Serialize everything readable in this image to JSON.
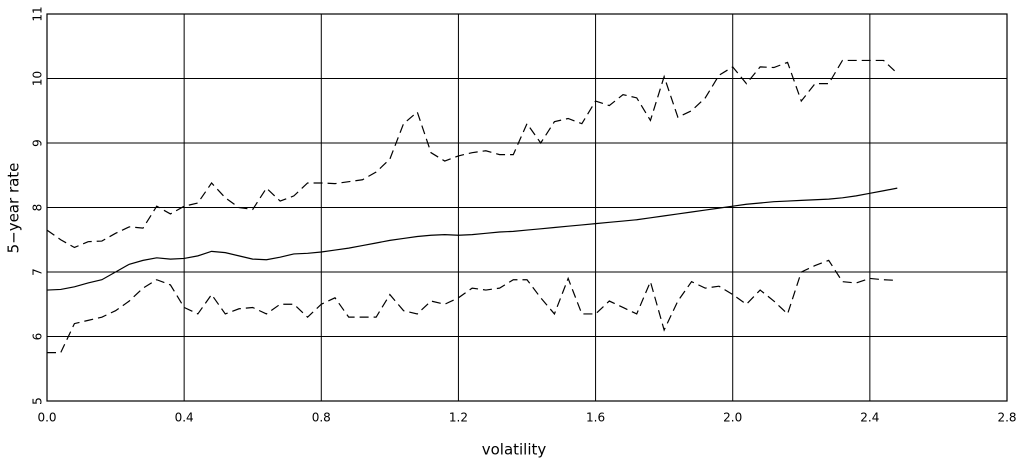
{
  "chart_data": {
    "type": "line",
    "x_label": "volatility",
    "y_label": "5−year rate",
    "x": [
      0,
      0.04,
      0.08,
      0.12,
      0.16,
      0.2,
      0.24,
      0.28,
      0.32,
      0.36,
      0.4,
      0.44,
      0.48,
      0.52,
      0.56,
      0.6,
      0.64,
      0.68,
      0.72,
      0.76,
      0.8,
      0.84,
      0.88,
      0.92,
      0.96,
      1,
      1.04,
      1.08,
      1.12,
      1.16,
      1.2,
      1.24,
      1.28,
      1.32,
      1.36,
      1.4,
      1.44,
      1.48,
      1.52,
      1.56,
      1.6,
      1.64,
      1.68,
      1.72,
      1.76,
      1.8,
      1.84,
      1.88,
      1.92,
      1.96,
      2,
      2.04,
      2.08,
      2.12,
      2.16,
      2.2,
      2.24,
      2.28,
      2.32,
      2.36,
      2.4,
      2.44,
      2.48
    ],
    "series": [
      {
        "color": "#000000",
        "style": "dashed",
        "values": [
          7.65,
          7.5,
          7.38,
          7.47,
          7.48,
          7.6,
          7.7,
          7.68,
          8.02,
          7.9,
          8.02,
          8.07,
          8.38,
          8.15,
          8.0,
          7.97,
          8.3,
          8.1,
          8.18,
          8.38,
          8.38,
          8.37,
          8.4,
          8.43,
          8.55,
          8.75,
          9.3,
          9.48,
          8.85,
          8.72,
          8.8,
          8.85,
          8.88,
          8.82,
          8.82,
          9.3,
          9.0,
          9.33,
          9.38,
          9.3,
          9.65,
          9.58,
          9.75,
          9.7,
          9.35,
          10.03,
          9.4,
          9.5,
          9.7,
          10.05,
          10.18,
          9.92,
          10.18,
          10.17,
          10.25,
          9.65,
          9.92,
          9.92,
          10.28,
          10.28,
          10.28,
          10.28,
          10.08
        ]
      },
      {
        "color": "#000000",
        "style": "solid",
        "values": [
          6.72,
          6.73,
          6.77,
          6.83,
          6.88,
          7.0,
          7.12,
          7.18,
          7.22,
          7.2,
          7.21,
          7.25,
          7.32,
          7.3,
          7.25,
          7.2,
          7.19,
          7.23,
          7.28,
          7.29,
          7.31,
          7.34,
          7.37,
          7.41,
          7.45,
          7.49,
          7.52,
          7.55,
          7.57,
          7.58,
          7.57,
          7.58,
          7.6,
          7.62,
          7.63,
          7.65,
          7.67,
          7.69,
          7.71,
          7.73,
          7.75,
          7.77,
          7.79,
          7.81,
          7.84,
          7.87,
          7.9,
          7.93,
          7.96,
          7.99,
          8.02,
          8.05,
          8.07,
          8.09,
          8.1,
          8.11,
          8.12,
          8.13,
          8.15,
          8.18,
          8.22,
          8.26,
          8.3
        ]
      },
      {
        "color": "#000000",
        "style": "dashed",
        "values": [
          5.75,
          5.75,
          6.2,
          6.25,
          6.3,
          6.4,
          6.55,
          6.75,
          6.88,
          6.8,
          6.45,
          6.35,
          6.65,
          6.35,
          6.43,
          6.45,
          6.35,
          6.5,
          6.5,
          6.3,
          6.5,
          6.6,
          6.3,
          6.3,
          6.3,
          6.65,
          6.4,
          6.35,
          6.55,
          6.5,
          6.6,
          6.75,
          6.72,
          6.75,
          6.88,
          6.88,
          6.6,
          6.35,
          6.9,
          6.35,
          6.35,
          6.55,
          6.45,
          6.35,
          6.85,
          6.1,
          6.55,
          6.85,
          6.75,
          6.78,
          6.65,
          6.5,
          6.72,
          6.55,
          6.35,
          7.0,
          7.1,
          7.18,
          6.85,
          6.83,
          6.9,
          6.88,
          6.87
        ]
      }
    ],
    "xlim": [
      0,
      2.8
    ],
    "xticks": [
      {
        "value": 0,
        "label": "0.0"
      },
      {
        "value": 0.4,
        "label": "0.4"
      },
      {
        "value": 0.8,
        "label": "0.8"
      },
      {
        "value": 1.2,
        "label": "1.2"
      },
      {
        "value": 1.6,
        "label": "1.6"
      },
      {
        "value": 2.0,
        "label": "2.0"
      },
      {
        "value": 2.4,
        "label": "2.4"
      },
      {
        "value": 2.8,
        "label": "2.8"
      }
    ],
    "ylim": [
      5,
      11
    ],
    "yticks": [
      5,
      6,
      7,
      8,
      9,
      10,
      11
    ],
    "grid": true
  }
}
